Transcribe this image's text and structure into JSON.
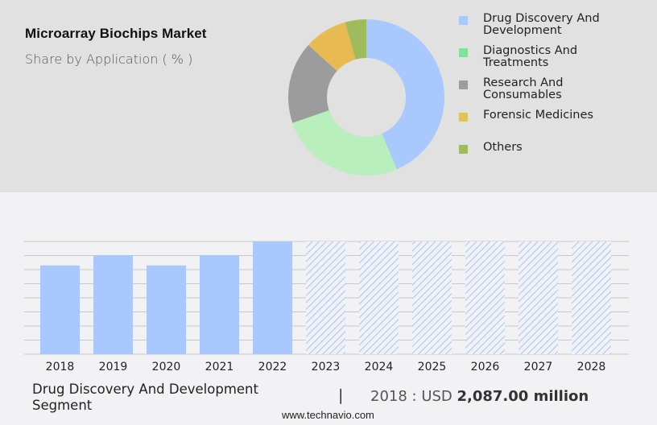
{
  "header": {
    "title": "Microarray Biochips Market",
    "subtitle": "Share by Application ( % )"
  },
  "legend": {
    "items": [
      {
        "line1": "Drug Discovery And",
        "line2": "Development",
        "color": "#a8c8fe"
      },
      {
        "line1": "Diagnostics And",
        "line2": "Treatments",
        "color": "#7ce39a"
      },
      {
        "line1": "Research And",
        "line2": "Consumables",
        "color": "#9c9c9c"
      },
      {
        "line1": "Forensic Medicines",
        "line2": "",
        "color": "#e0c45a"
      },
      {
        "line1": "Others",
        "line2": "",
        "color": "#a0bb5c"
      }
    ]
  },
  "footer": {
    "segment_line1": "Drug Discovery And Development",
    "segment_line2": "Segment",
    "separator": "|",
    "value_prefix": "2018 : USD ",
    "value_bold": "2,087.00 million",
    "website": "www.technavio.com"
  },
  "chart_data": [
    {
      "type": "pie",
      "title": "Microarray Biochips Market",
      "subtitle": "Share by Application ( % )",
      "donut": true,
      "categories": [
        "Drug Discovery And Development",
        "Diagnostics And Treatments",
        "Research And Consumables",
        "Forensic Medicines",
        "Others"
      ],
      "values": [
        43.6,
        26.1,
        17.0,
        8.9,
        4.4
      ],
      "colors": [
        "#a8c8fe",
        "#b8efbc",
        "#9c9c9c",
        "#e8ba52",
        "#a0bb5c"
      ],
      "legend_position": "right"
    },
    {
      "type": "bar",
      "title": "Drug Discovery And Development Segment",
      "categories": [
        "2018",
        "2019",
        "2020",
        "2021",
        "2022",
        "2023",
        "2024",
        "2025",
        "2026",
        "2027",
        "2028"
      ],
      "values": [
        2087,
        2330,
        2087,
        2330,
        2650,
        null,
        null,
        null,
        null,
        null,
        null
      ],
      "forecast_hatched": [
        "2023",
        "2024",
        "2025",
        "2026",
        "2027",
        "2028"
      ],
      "annotation": "2018 : USD 2,087.00 million",
      "grid": true,
      "ylabel": "",
      "xlabel": "",
      "bar_color": "#a8c8fe"
    }
  ]
}
